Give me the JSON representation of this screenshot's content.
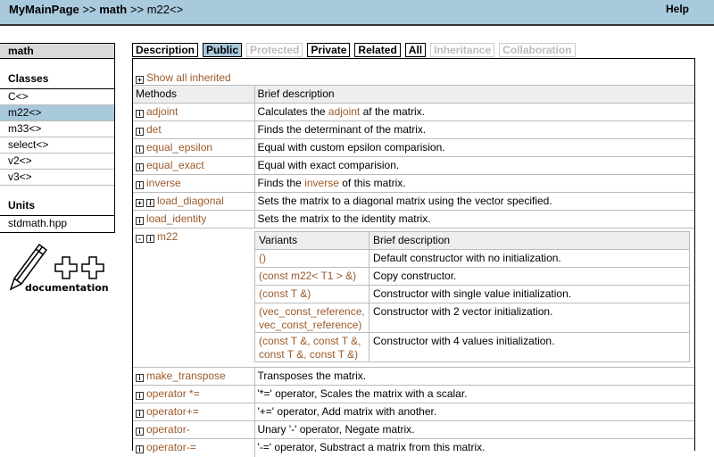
{
  "header": {
    "crumbs": [
      "MyMainPage",
      ">>",
      "math",
      ">>",
      "m22<>"
    ],
    "help": "Help"
  },
  "sidebar": {
    "title": "math",
    "classes_heading": "Classes",
    "classes": [
      "C<>",
      "m22<>",
      "m33<>",
      "select<>",
      "v2<>",
      "v3<>"
    ],
    "selected": "m22<>",
    "units_heading": "Units",
    "units": [
      "stdmath.hpp"
    ],
    "logo_text": "documentation"
  },
  "tabs": [
    {
      "label": "Description",
      "state": "normal"
    },
    {
      "label": "Public",
      "state": "active"
    },
    {
      "label": "Protected",
      "state": "disabled"
    },
    {
      "label": "Private",
      "state": "normal"
    },
    {
      "label": "Related",
      "state": "normal"
    },
    {
      "label": "All",
      "state": "normal"
    },
    {
      "label": "Inheritance",
      "state": "disabled"
    },
    {
      "label": "Collaboration",
      "state": "disabled"
    }
  ],
  "main": {
    "show_inherited": "Show all inherited",
    "headers": [
      "Methods",
      "Brief description"
    ],
    "methods": [
      {
        "name": "adjoint",
        "desc": [
          "Calculates the ",
          "adjoint",
          " af the matrix."
        ]
      },
      {
        "name": "det",
        "desc": [
          "Finds the determinant of the matrix."
        ]
      },
      {
        "name": "equal_epsilon",
        "desc": [
          "Equal with custom epsilon comparision."
        ]
      },
      {
        "name": "equal_exact",
        "desc": [
          "Equal with exact comparision."
        ]
      },
      {
        "name": "inverse",
        "desc": [
          "Finds the ",
          "inverse",
          " of this matrix."
        ]
      },
      {
        "name": "load_diagonal",
        "expand": "+",
        "desc": [
          "Sets the matrix to a diagonal matrix using the vector specified."
        ]
      },
      {
        "name": "load_identity",
        "desc": [
          "Sets the matrix to the identity matrix."
        ]
      },
      {
        "name": "m22",
        "expand": "-",
        "variants_headers": [
          "Variants",
          "Brief description"
        ],
        "variants": [
          {
            "sig": "()",
            "desc": "Default constructor with no initialization."
          },
          {
            "sig": "(const m22< T1 > &)",
            "desc": "Copy constructor."
          },
          {
            "sig": "(const T &)",
            "desc": "Constructor with single value initialization."
          },
          {
            "sig": "(vec_const_reference, vec_const_reference)",
            "desc": "Constructor with 2 vector initialization."
          },
          {
            "sig": "(const T &, const T &, const T &, const T &)",
            "desc": "Constructor with 4 values initialization."
          }
        ]
      },
      {
        "name": "make_transpose",
        "desc": [
          "Transposes the matrix."
        ]
      },
      {
        "name": "operator *=",
        "desc": [
          "'*=' operator, Scales the matrix with a scalar."
        ]
      },
      {
        "name": "operator+=",
        "desc": [
          "'+=' operator, Add matrix with another."
        ]
      },
      {
        "name": "operator-",
        "desc": [
          "Unary '-' operator, Negate matrix."
        ]
      },
      {
        "name": "operator-=",
        "desc": [
          "'-=' operator, Substract a matrix from this matrix."
        ]
      }
    ]
  },
  "colors": {
    "header_bg": "#a9c9dc",
    "link": "#9b5a2a",
    "selected": "#a9c9dc"
  }
}
